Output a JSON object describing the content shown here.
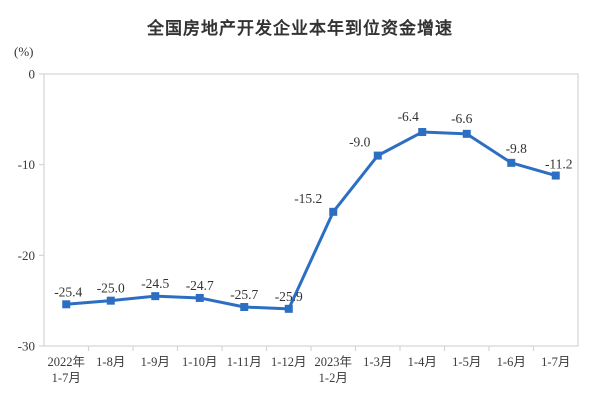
{
  "header": {
    "title": "全国房地产开发企业本年到位资金增速",
    "unit_label": "(%)"
  },
  "chart_data": {
    "type": "line",
    "title": "全国房地产开发企业本年到位资金增速",
    "ylabel": "(%)",
    "xlabel": "",
    "categories": [
      [
        "2022年",
        "1-7月"
      ],
      [
        "1-8月"
      ],
      [
        "1-9月"
      ],
      [
        "1-10月"
      ],
      [
        "1-11月"
      ],
      [
        "1-12月"
      ],
      [
        "2023年",
        "1-2月"
      ],
      [
        "1-3月"
      ],
      [
        "1-4月"
      ],
      [
        "1-5月"
      ],
      [
        "1-6月"
      ],
      [
        "1-7月"
      ]
    ],
    "values": [
      -25.4,
      -25.0,
      -24.5,
      -24.7,
      -25.7,
      -25.9,
      -15.2,
      -9.0,
      -6.4,
      -6.6,
      -9.8,
      -11.2
    ],
    "data_labels": [
      "-25.4",
      "-25.0",
      "-24.5",
      "-24.7",
      "-25.7",
      "-25.9",
      "-15.2",
      "-9.0",
      "-6.4",
      "-6.6",
      "-9.8",
      "-11.2"
    ],
    "ylim": [
      -30,
      0
    ],
    "yticks": [
      0,
      -10,
      -20,
      -30
    ],
    "ytick_labels": [
      "0",
      "-10",
      "-20",
      "-30"
    ],
    "grid": false,
    "legend": "none",
    "marker": "square",
    "colors": {
      "line": "#2c6fc2",
      "marker": "#2c6fc2",
      "axis_border": "#d4d4d4",
      "text": "#333333"
    }
  }
}
